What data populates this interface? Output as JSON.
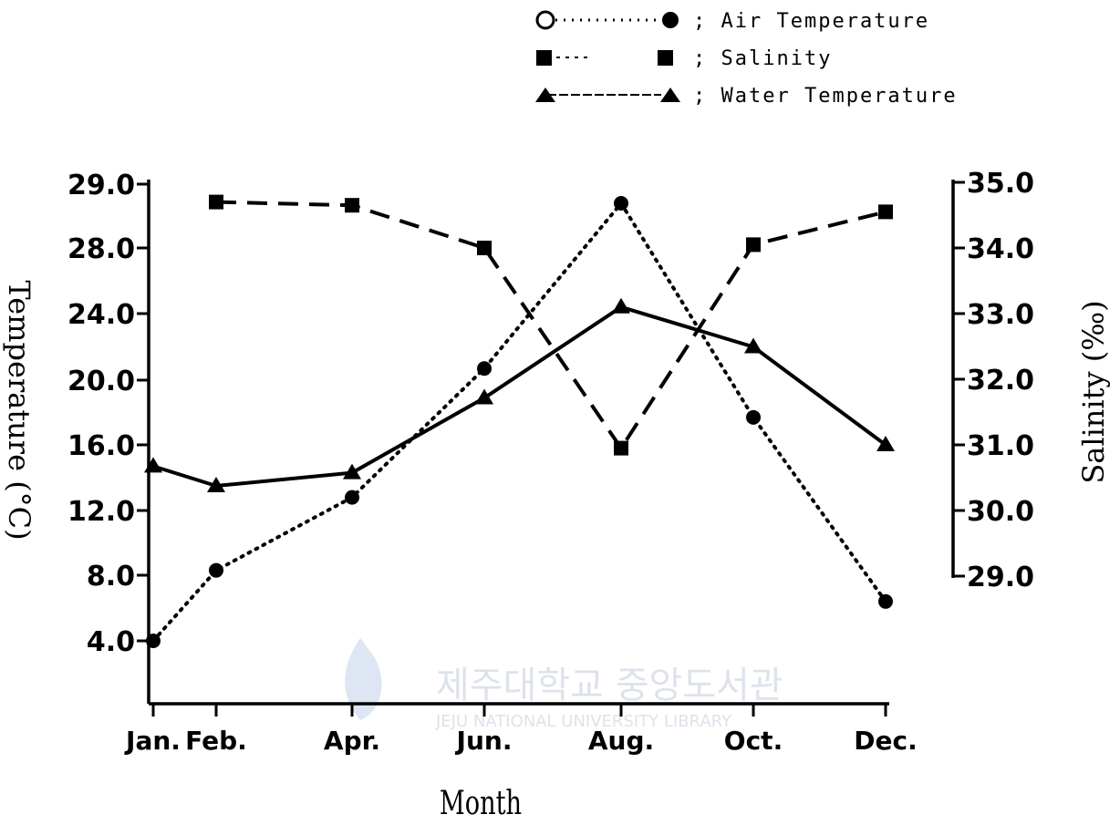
{
  "chart_data": {
    "type": "line",
    "xlabel": "Month",
    "ylabel_left": "Temperature (°C)",
    "ylabel_right": "Salinity (‰)",
    "categories": [
      "Jan.",
      "Feb.",
      "Apr.",
      "Jun.",
      "Aug.",
      "Oct.",
      "Dec."
    ],
    "left_axis": {
      "ticks": [
        "4.0",
        "8.0",
        "12.0",
        "16.0",
        "20.0",
        "24.0",
        "28.0",
        "29.0"
      ]
    },
    "right_axis": {
      "range": [
        29.0,
        35.0
      ],
      "ticks": [
        "29.0",
        "30.0",
        "31.0",
        "32.0",
        "33.0",
        "34.0",
        "35.0"
      ]
    },
    "series": [
      {
        "name": "Air Temperature",
        "axis": "left",
        "style": "dotted",
        "marker": "circle",
        "values": [
          4.0,
          8.3,
          12.8,
          20.7,
          28.7,
          17.7,
          6.4
        ]
      },
      {
        "name": "Salinity",
        "axis": "right",
        "style": "dashed",
        "marker": "square",
        "values": [
          null,
          34.7,
          34.65,
          34.0,
          30.95,
          34.05,
          34.55
        ]
      },
      {
        "name": "Water Temperature",
        "axis": "left",
        "style": "solid",
        "marker": "triangle",
        "values": [
          14.7,
          13.5,
          14.3,
          18.9,
          24.4,
          22.0,
          16.0
        ]
      }
    ],
    "legend": {
      "position": "top-right",
      "entries": [
        "; Air  Temperature",
        "; Salinity",
        "; Water Temperature"
      ]
    },
    "grid": false
  },
  "watermark": {
    "korean": "제주대학교 중앙도서관",
    "english": "JEJU NATIONAL UNIVERSITY LIBRARY"
  }
}
